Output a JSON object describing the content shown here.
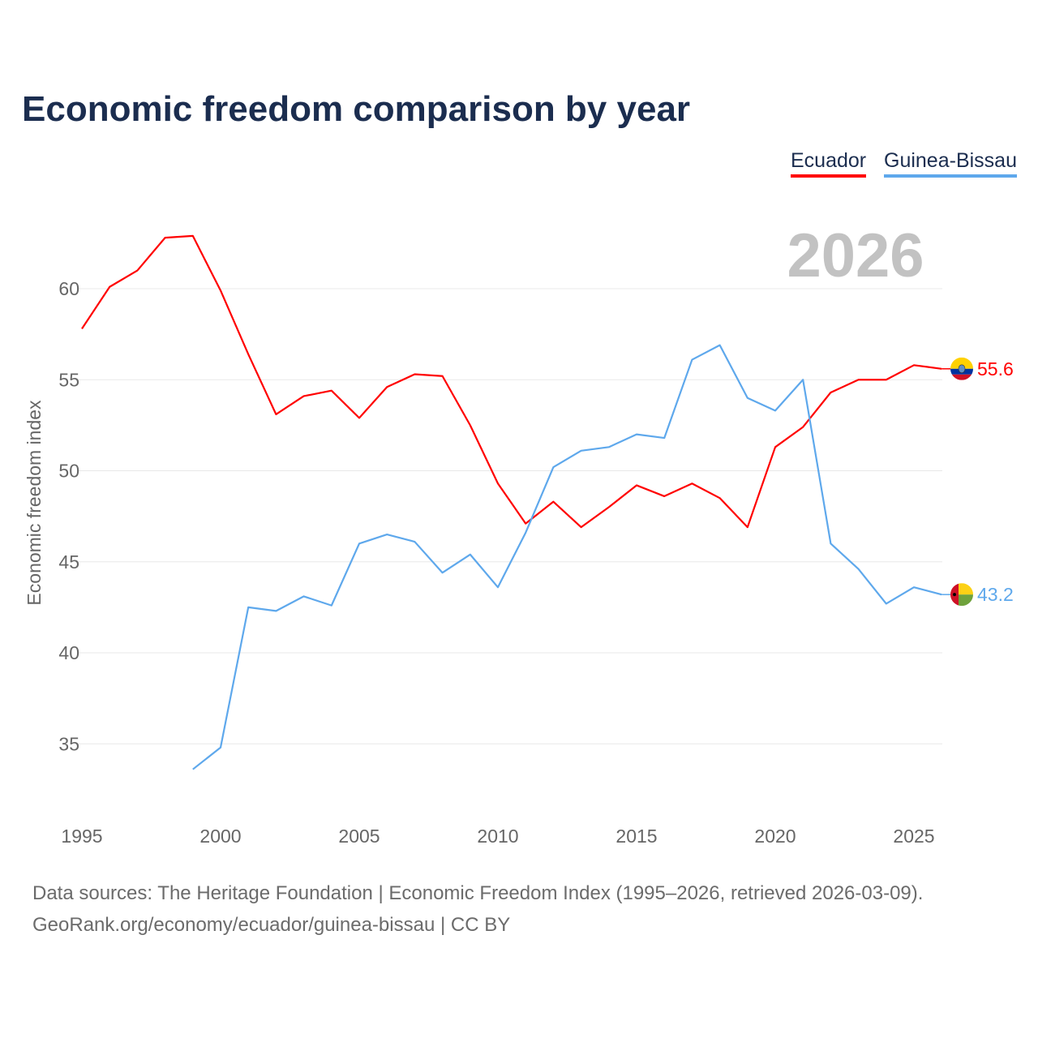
{
  "title": "Economic freedom comparison by year",
  "year_watermark": "2026",
  "footer": {
    "line1": "Data sources: The Heritage Foundation | Economic Freedom Index (1995–2026, retrieved 2026-03-09).",
    "line2": "GeoRank.org/economy/ecuador/guinea-bissau | CC BY"
  },
  "chart_data": {
    "type": "line",
    "title": "Economic freedom comparison by year",
    "xlabel": "",
    "ylabel": "Economic freedom index",
    "xlim": [
      1995,
      2026
    ],
    "ylim": [
      31,
      64
    ],
    "x_ticks": [
      1995,
      2000,
      2005,
      2010,
      2015,
      2020,
      2025
    ],
    "y_ticks": [
      35,
      40,
      45,
      50,
      55,
      60
    ],
    "grid": true,
    "legend_position": "top-right",
    "series": [
      {
        "name": "Ecuador",
        "color": "#ff0000",
        "end_label": "55.6",
        "flag_icon": "ecuador-flag-icon",
        "x": [
          1995,
          1996,
          1997,
          1998,
          1999,
          2000,
          2001,
          2002,
          2003,
          2004,
          2005,
          2006,
          2007,
          2008,
          2009,
          2010,
          2011,
          2012,
          2013,
          2014,
          2015,
          2016,
          2017,
          2018,
          2019,
          2020,
          2021,
          2022,
          2023,
          2024,
          2025,
          2026
        ],
        "values": [
          57.8,
          60.1,
          61.0,
          62.8,
          62.9,
          59.9,
          56.4,
          53.1,
          54.1,
          54.4,
          52.9,
          54.6,
          55.3,
          55.2,
          52.5,
          49.3,
          47.1,
          48.3,
          46.9,
          48.0,
          49.2,
          48.6,
          49.3,
          48.5,
          46.9,
          51.3,
          52.4,
          54.3,
          55.0,
          55.0,
          55.8,
          55.6
        ]
      },
      {
        "name": "Guinea-Bissau",
        "color": "#5ea8ec",
        "end_label": "43.2",
        "flag_icon": "guinea-bissau-flag-icon",
        "x": [
          1999,
          2000,
          2001,
          2002,
          2003,
          2004,
          2005,
          2006,
          2007,
          2008,
          2009,
          2010,
          2011,
          2012,
          2013,
          2014,
          2015,
          2016,
          2017,
          2018,
          2019,
          2020,
          2021,
          2022,
          2023,
          2024,
          2025,
          2026
        ],
        "values": [
          33.6,
          34.8,
          42.5,
          42.3,
          43.1,
          42.6,
          46.0,
          46.5,
          46.1,
          44.4,
          45.4,
          43.6,
          46.6,
          50.2,
          51.1,
          51.3,
          52.0,
          51.8,
          56.1,
          56.9,
          54.0,
          53.3,
          55.0,
          46.0,
          44.6,
          42.7,
          43.6,
          43.2
        ]
      }
    ]
  }
}
